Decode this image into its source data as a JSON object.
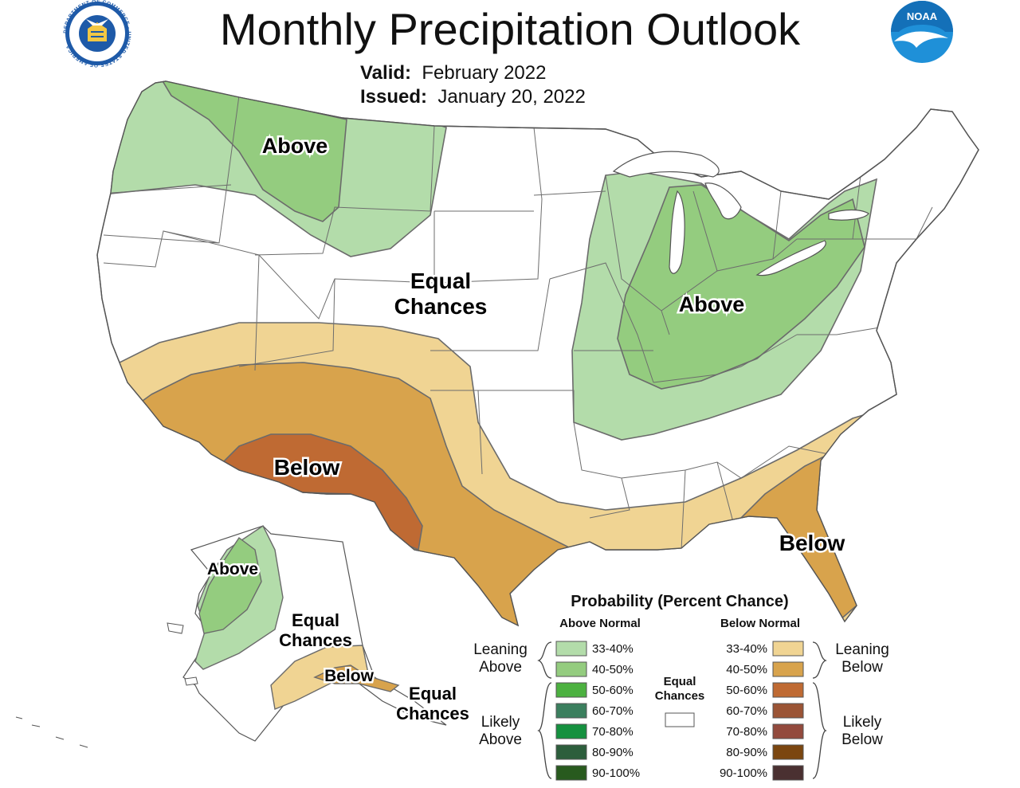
{
  "header": {
    "title": "Monthly Precipitation Outlook",
    "valid_label": "Valid:",
    "valid_value": "February 2022",
    "issued_label": "Issued:",
    "issued_value": "January 20, 2022"
  },
  "logos": {
    "commerce": {
      "ring_text": "DEPARTMENT OF COMMERCE · UNITED STATES OF AMERICA",
      "icon": "commerce-seal-icon"
    },
    "noaa": {
      "text": "NOAA",
      "icon": "noaa-logo-icon"
    }
  },
  "map_labels": {
    "above_nw": "Above",
    "above_east": "Above",
    "equal_center_1": "Equal",
    "equal_center_2": "Chances",
    "below_sw": "Below",
    "below_se": "Below",
    "ak_above": "Above",
    "ak_equal_1": "Equal",
    "ak_equal_2": "Chances",
    "ak_below": "Below",
    "ak_equal2_1": "Equal",
    "ak_equal2_2": "Chances"
  },
  "legend": {
    "title": "Probability (Percent Chance)",
    "above_header": "Above Normal",
    "below_header": "Below Normal",
    "leaning_above_1": "Leaning",
    "leaning_above_2": "Above",
    "likely_above_1": "Likely",
    "likely_above_2": "Above",
    "leaning_below_1": "Leaning",
    "leaning_below_2": "Below",
    "likely_below_1": "Likely",
    "likely_below_2": "Below",
    "equal_1": "Equal",
    "equal_2": "Chances",
    "equal_color": "#ffffff",
    "above_rows": [
      {
        "label": "33-40%",
        "color": "#b3dcaa"
      },
      {
        "label": "40-50%",
        "color": "#94cc7f"
      },
      {
        "label": "50-60%",
        "color": "#4cb140"
      },
      {
        "label": "60-70%",
        "color": "#3b7f5e"
      },
      {
        "label": "70-80%",
        "color": "#15913f"
      },
      {
        "label": "80-90%",
        "color": "#2c5e3c"
      },
      {
        "label": "90-100%",
        "color": "#285a1e"
      }
    ],
    "below_rows": [
      {
        "label": "33-40%",
        "color": "#f0d493"
      },
      {
        "label": "40-50%",
        "color": "#d8a34c"
      },
      {
        "label": "50-60%",
        "color": "#bf6a33"
      },
      {
        "label": "60-70%",
        "color": "#9b5435"
      },
      {
        "label": "70-80%",
        "color": "#934a3d"
      },
      {
        "label": "80-90%",
        "color": "#7b4610"
      },
      {
        "label": "90-100%",
        "color": "#4a3031"
      }
    ]
  },
  "colors": {
    "land": "#ffffff",
    "borders": "#6d6d6d",
    "contour": "#6b6b6b"
  }
}
